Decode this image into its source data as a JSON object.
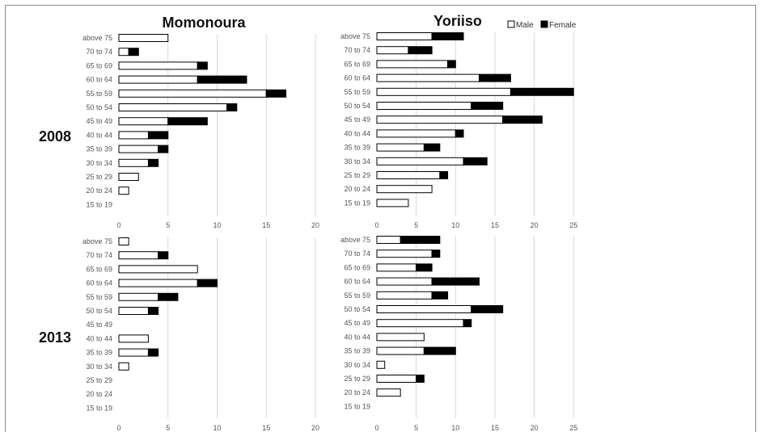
{
  "figure": {
    "column_titles": [
      "Momonoura",
      "Yoriiso"
    ],
    "row_titles": [
      "2008",
      "2013"
    ],
    "legend": [
      {
        "label": "Male",
        "color": "#ffffff"
      },
      {
        "label": "Female",
        "color": "#000000"
      }
    ],
    "legend_placement": "top-right"
  },
  "chart_data": [
    {
      "type": "bar",
      "stacked": true,
      "orientation": "horizontal",
      "title": "Momonoura",
      "year": "2008",
      "categories": [
        "above 75",
        "70 to 74",
        "65 to 69",
        "60 to 64",
        "55 to 59",
        "50 to 54",
        "45 to 49",
        "40 to 44",
        "35 to 39",
        "30 to 34",
        "25 to 29",
        "20 to 24",
        "15 to 19"
      ],
      "series": [
        {
          "name": "Male",
          "color": "#ffffff",
          "values": [
            5,
            1,
            8,
            8,
            15,
            11,
            5,
            3,
            4,
            3,
            2,
            1,
            0
          ]
        },
        {
          "name": "Female",
          "color": "#000000",
          "values": [
            0,
            1,
            1,
            5,
            2,
            1,
            4,
            2,
            1,
            1,
            0,
            0,
            0
          ]
        }
      ],
      "xticks": [
        "0",
        "5",
        "10",
        "15",
        "20"
      ],
      "xlim": [
        0,
        20
      ],
      "grid": true
    },
    {
      "type": "bar",
      "stacked": true,
      "orientation": "horizontal",
      "title": "Yoriiso",
      "year": "2008",
      "categories": [
        "above 75",
        "70 to 74",
        "65 to 69",
        "60 to 64",
        "55 to 59",
        "50 to 54",
        "45 to 49",
        "40 to 44",
        "35 to 39",
        "30 to 34",
        "25 to 29",
        "20 to 24",
        "15 to 19"
      ],
      "series": [
        {
          "name": "Male",
          "color": "#ffffff",
          "values": [
            7,
            4,
            9,
            13,
            17,
            12,
            16,
            10,
            6,
            11,
            8,
            7,
            4
          ]
        },
        {
          "name": "Female",
          "color": "#000000",
          "values": [
            4,
            3,
            1,
            4,
            8,
            4,
            5,
            1,
            2,
            3,
            1,
            0,
            0
          ]
        }
      ],
      "xticks": [
        "0",
        "5",
        "10",
        "15",
        "20",
        "25"
      ],
      "xlim": [
        0,
        25
      ],
      "grid": true
    },
    {
      "type": "bar",
      "stacked": true,
      "orientation": "horizontal",
      "title": "Momonoura",
      "year": "2013",
      "categories": [
        "above 75",
        "70 to 74",
        "65 to 69",
        "60 to 64",
        "55 to 59",
        "50 to 54",
        "45 to 49",
        "40 to 44",
        "35 to 39",
        "30 to 34",
        "25 to 29",
        "20 to 24",
        "15 to 19"
      ],
      "series": [
        {
          "name": "Male",
          "color": "#ffffff",
          "values": [
            1,
            4,
            8,
            8,
            4,
            3,
            0,
            3,
            3,
            1,
            0,
            0,
            0
          ]
        },
        {
          "name": "Female",
          "color": "#000000",
          "values": [
            0,
            1,
            0,
            2,
            2,
            1,
            0,
            0,
            1,
            0,
            0,
            0,
            0
          ]
        }
      ],
      "xticks": [
        "0",
        "5",
        "10",
        "15",
        "20"
      ],
      "xlim": [
        0,
        20
      ],
      "grid": true
    },
    {
      "type": "bar",
      "stacked": true,
      "orientation": "horizontal",
      "title": "Yoriiso",
      "year": "2013",
      "categories": [
        "above 75",
        "70 to 74",
        "65 to 69",
        "60 to 64",
        "55 to 59",
        "50 to 54",
        "45 to 49",
        "40 to 44",
        "35 to 39",
        "30 to 34",
        "25 to 29",
        "20 to 24",
        "15 to 19"
      ],
      "series": [
        {
          "name": "Male",
          "color": "#ffffff",
          "values": [
            3,
            7,
            5,
            7,
            7,
            12,
            11,
            6,
            6,
            1,
            5,
            3,
            0
          ]
        },
        {
          "name": "Female",
          "color": "#000000",
          "values": [
            5,
            1,
            2,
            6,
            2,
            4,
            1,
            0,
            4,
            0,
            1,
            0,
            0
          ]
        }
      ],
      "xticks": [
        "0",
        "5",
        "10",
        "15",
        "20",
        "25"
      ],
      "xlim": [
        0,
        25
      ],
      "grid": true
    }
  ]
}
